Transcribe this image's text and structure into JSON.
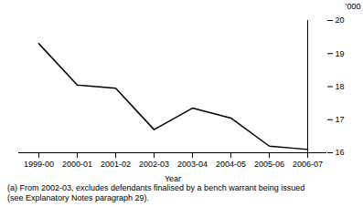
{
  "chart_data": {
    "type": "line",
    "categories": [
      "1999-00",
      "2000-01",
      "2001-02",
      "2002-03",
      "2003-04",
      "2004-05",
      "2005-06",
      "2006-07"
    ],
    "values": [
      19.3,
      18.05,
      17.95,
      16.7,
      17.35,
      17.05,
      16.2,
      16.1
    ],
    "color": "#000000",
    "xlabel": "Year",
    "ylabel": "'000",
    "ylim": [
      16,
      20
    ],
    "yticks": [
      16,
      17,
      18,
      19,
      20
    ],
    "grid": false,
    "annotations": [
      "(a) From 2002-03, excludes defendants finalised by a bench warrant being issued",
      "(see Explanatory Notes paragraph 29)."
    ]
  }
}
